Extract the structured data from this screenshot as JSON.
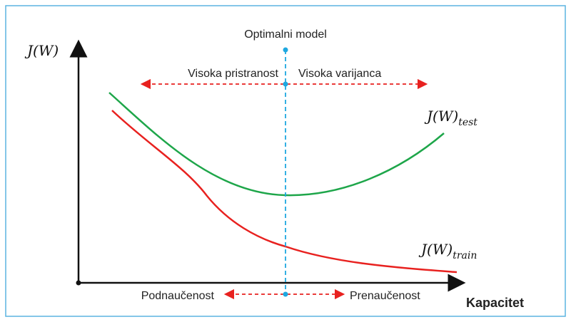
{
  "diagram": {
    "y_axis_label": "J(W)",
    "x_axis_label": "Kapacitet",
    "optimal_label": "Optimalni model",
    "top_left_label": "Visoka pristranost",
    "top_right_label": "Visoka varijanca",
    "bottom_left_label": "Podnaučenost",
    "bottom_right_label": "Prenaučenost",
    "test_curve": {
      "label": "J(W)",
      "subscript": "test"
    },
    "train_curve": {
      "label": "J(W)",
      "subscript": "train"
    }
  }
}
